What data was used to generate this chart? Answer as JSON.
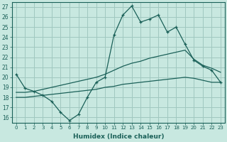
{
  "xlabel": "Humidex (Indice chaleur)",
  "x_ticks": [
    0,
    1,
    2,
    3,
    4,
    5,
    6,
    7,
    8,
    9,
    10,
    11,
    12,
    13,
    14,
    15,
    16,
    17,
    18,
    19,
    20,
    21,
    22,
    23
  ],
  "y_ticks": [
    16,
    17,
    18,
    19,
    20,
    21,
    22,
    23,
    24,
    25,
    26,
    27
  ],
  "xlim": [
    -0.5,
    23.5
  ],
  "ylim": [
    15.5,
    27.5
  ],
  "bg_color": "#c8e8e0",
  "grid_color": "#a0c8c0",
  "line_color": "#1a6058",
  "line1_x": [
    0,
    1,
    2,
    3,
    4,
    5,
    6,
    7,
    8,
    9,
    10,
    11,
    12,
    13,
    14,
    15,
    16,
    17,
    18,
    19,
    20,
    21,
    22,
    23
  ],
  "line1_y": [
    20.3,
    18.9,
    18.6,
    18.2,
    17.6,
    16.5,
    15.7,
    16.3,
    18.0,
    19.5,
    20.0,
    24.2,
    26.2,
    27.1,
    25.5,
    25.8,
    26.2,
    24.5,
    25.0,
    23.3,
    21.7,
    21.1,
    20.7,
    19.5
  ],
  "line2_x": [
    0,
    1,
    2,
    3,
    4,
    5,
    6,
    7,
    8,
    9,
    10,
    11,
    12,
    13,
    14,
    15,
    16,
    17,
    18,
    19,
    20,
    21,
    22,
    23
  ],
  "line2_y": [
    18.5,
    18.5,
    18.6,
    18.8,
    19.0,
    19.2,
    19.4,
    19.6,
    19.8,
    20.0,
    20.3,
    20.7,
    21.1,
    21.4,
    21.6,
    21.9,
    22.1,
    22.3,
    22.5,
    22.7,
    21.8,
    21.2,
    20.9,
    20.5
  ],
  "line3_x": [
    0,
    1,
    2,
    3,
    4,
    5,
    6,
    7,
    8,
    9,
    10,
    11,
    12,
    13,
    14,
    15,
    16,
    17,
    18,
    19,
    20,
    21,
    22,
    23
  ],
  "line3_y": [
    18.0,
    18.0,
    18.1,
    18.2,
    18.3,
    18.4,
    18.5,
    18.6,
    18.7,
    18.8,
    19.0,
    19.1,
    19.3,
    19.4,
    19.5,
    19.6,
    19.7,
    19.8,
    19.9,
    20.0,
    19.9,
    19.7,
    19.5,
    19.5
  ]
}
